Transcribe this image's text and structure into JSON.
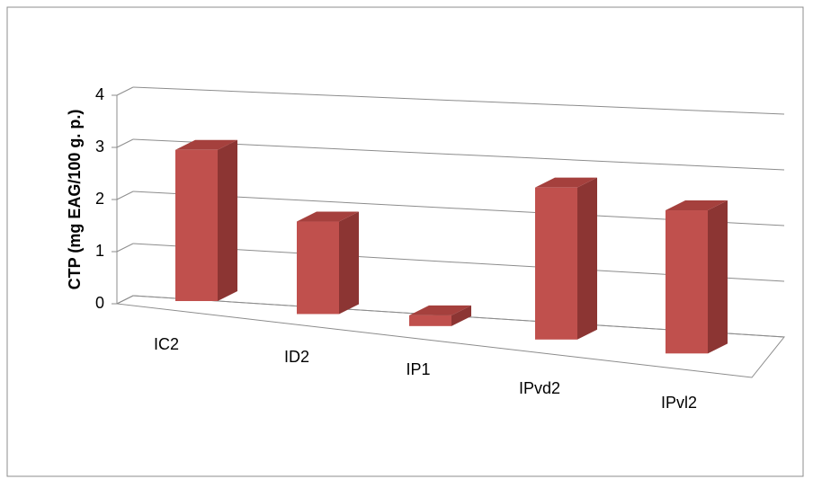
{
  "chart_data": {
    "type": "bar3d",
    "y_axis_title": "CTP (mg EAG/100 g. p.)",
    "categories": [
      "IC2",
      "ID2",
      "IP1",
      "IPvd2",
      "IPvl2"
    ],
    "values": [
      2.9,
      1.75,
      0.2,
      2.8,
      2.6
    ],
    "color": "#c0504d",
    "ylim": [
      0,
      4
    ],
    "yticks": [
      0,
      1,
      2,
      3,
      4
    ],
    "grid": true
  }
}
